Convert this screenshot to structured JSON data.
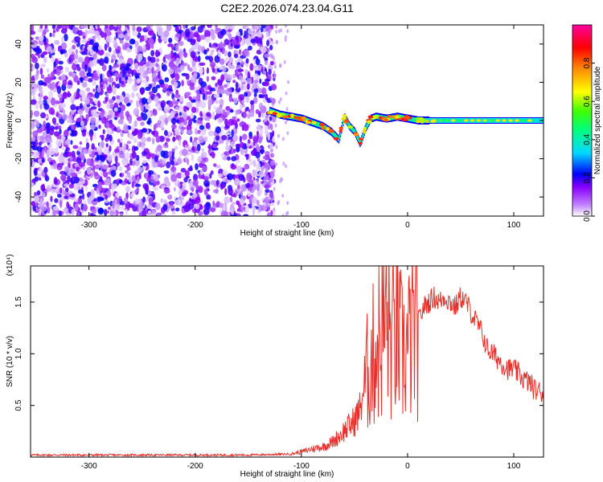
{
  "title": "C2E2.2026.074.23.04.G11",
  "chart_data": [
    {
      "type": "heatmap",
      "xlabel": "Height of straight line (km)",
      "ylabel": "Frequency (Hz)",
      "xlim": [
        -355,
        128
      ],
      "ylim": [
        -50,
        50
      ],
      "xticks": [
        -300,
        -200,
        -100,
        0,
        100
      ],
      "xtick_labels": [
        "-300",
        "-200",
        "-100",
        "0",
        "100"
      ],
      "yticks": [
        -40,
        -20,
        0,
        20,
        40
      ],
      "ytick_labels": [
        "-40",
        "-20",
        "0",
        "20",
        "40"
      ],
      "colorbar": {
        "label": "Normalized spectral amplitude",
        "range": [
          0,
          1
        ],
        "ticks": [
          0,
          0.2,
          0.4,
          0.6,
          0.8
        ],
        "tick_labels": [
          "0.0",
          "0.2",
          "0.4",
          "0.6",
          "0.8"
        ],
        "colormap": [
          "#ffffff",
          "#8a00ff",
          "#0000ff",
          "#00d8ff",
          "#00ff40",
          "#ffff00",
          "#ff8000",
          "#ff0000",
          "#ff00a0"
        ]
      },
      "noise_region_x": [
        -355,
        -130
      ],
      "signal_track": {
        "x": [
          -130,
          -120,
          -110,
          -100,
          -90,
          -80,
          -72,
          -65,
          -60,
          -55,
          -50,
          -45,
          -40,
          -35,
          -30,
          -20,
          -10,
          0,
          10,
          20,
          40,
          60,
          80,
          100,
          128
        ],
        "frequency_hz": [
          5,
          3,
          2,
          1,
          -1,
          -3,
          -6,
          -10,
          2,
          -3,
          -6,
          -12,
          -4,
          1,
          2,
          1,
          2,
          1,
          0,
          0,
          0,
          0,
          0,
          0,
          0
        ]
      },
      "grid": false
    },
    {
      "type": "line",
      "xlabel": "Height of straight line (km)",
      "ylabel": "SNR (10 * v/v)",
      "y_multiplier": "(x10⁴)",
      "xlim": [
        -355,
        128
      ],
      "ylim": [
        0,
        1.85
      ],
      "xticks": [
        -300,
        -200,
        -100,
        0,
        100
      ],
      "xtick_labels": [
        "-300",
        "-200",
        "-100",
        "0",
        "100"
      ],
      "yticks": [
        0.5,
        1.0,
        1.5
      ],
      "ytick_labels": [
        "0.5",
        "1.0",
        "1.5"
      ],
      "color": "#e8302a",
      "series": [
        {
          "x": [
            -355,
            -300,
            -250,
            -200,
            -150,
            -110,
            -100,
            -90,
            -80,
            -70,
            -60,
            -50,
            -45,
            -40,
            -35,
            -30,
            -25,
            -20,
            -15,
            -10,
            -5,
            0,
            5,
            10,
            15,
            20,
            25,
            30,
            35,
            40,
            45,
            50,
            55,
            60,
            65,
            70,
            75,
            80,
            85,
            90,
            95,
            100,
            105,
            110,
            115,
            120,
            128
          ],
          "values": [
            0.02,
            0.02,
            0.02,
            0.02,
            0.02,
            0.03,
            0.05,
            0.08,
            0.1,
            0.15,
            0.25,
            0.35,
            0.45,
            0.75,
            0.9,
            1.05,
            1.2,
            1.35,
            1.1,
            1.2,
            1.0,
            1.05,
            1.2,
            1.3,
            1.45,
            1.5,
            1.55,
            1.5,
            1.55,
            1.5,
            1.45,
            1.55,
            1.5,
            1.4,
            1.3,
            1.2,
            1.05,
            1.0,
            0.95,
            0.9,
            0.85,
            0.85,
            0.8,
            0.75,
            0.72,
            0.65,
            0.62
          ]
        }
      ],
      "grid": false
    }
  ]
}
